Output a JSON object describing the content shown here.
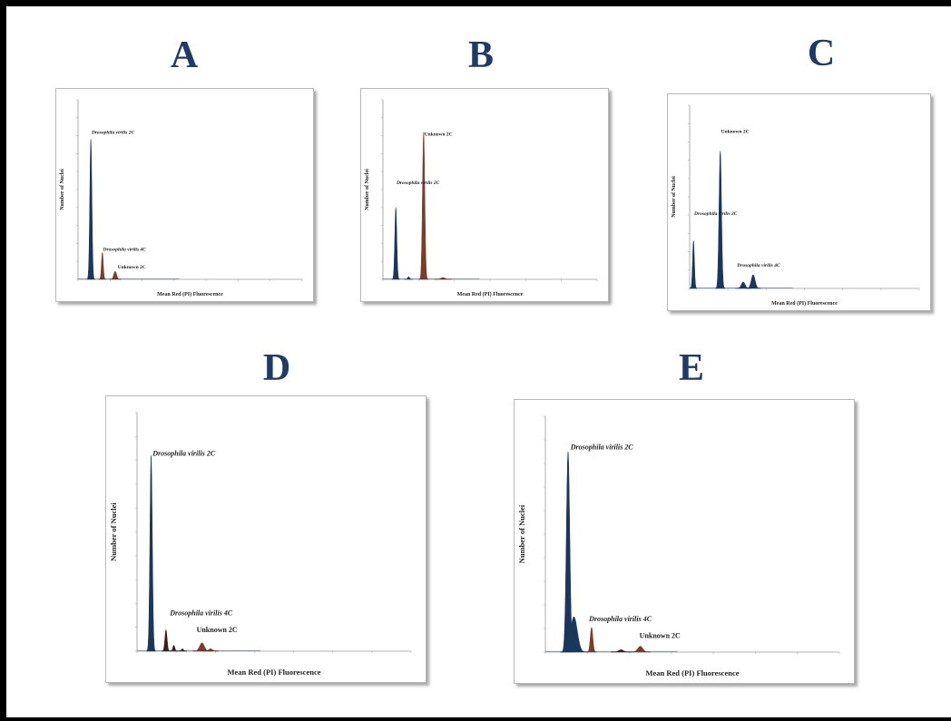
{
  "chart_data": [
    {
      "type": "area",
      "panel_label": "A",
      "xlabel": "Mean Red (PI) Fluorescence",
      "ylabel": "Number of Nuclei",
      "xlim": [
        0,
        350
      ],
      "ylim": [
        0,
        10
      ],
      "peaks": [
        {
          "x": 20,
          "height": 7.8,
          "width": 1.6,
          "color": "#1b365d"
        },
        {
          "x": 38,
          "height": 1.5,
          "width": 1.4,
          "color": "#7a3e28"
        },
        {
          "x": 58,
          "height": 0.45,
          "width": 2.2,
          "color": "#7a3e28"
        }
      ],
      "annotations": [
        {
          "text": "Drosophila virilis 2C",
          "x": 21,
          "y": 8.1,
          "italic": true
        },
        {
          "text": "Drosophila virilis 4C",
          "x": 39,
          "y": 1.6,
          "italic": true
        },
        {
          "text": "Unknown 2C",
          "x": 62,
          "y": 0.6,
          "italic": false
        }
      ],
      "colors": {
        "genome_standard": "#1b365d",
        "sample": "#7a3e28"
      }
    },
    {
      "type": "area",
      "panel_label": "B",
      "xlabel": "Mean Red (PI) Fluorescence",
      "ylabel": "Number of Nuclei",
      "xlim": [
        0,
        300
      ],
      "ylim": [
        0,
        10
      ],
      "peaks": [
        {
          "x": 18,
          "height": 4.0,
          "width": 1.4,
          "color": "#1b365d"
        },
        {
          "x": 36,
          "height": 0.15,
          "width": 1.4,
          "color": "#1b365d"
        },
        {
          "x": 57,
          "height": 8.2,
          "width": 1.6,
          "color": "#7a3e28"
        },
        {
          "x": 84,
          "height": 0.1,
          "width": 3.0,
          "color": "#7a3e28"
        }
      ],
      "annotations": [
        {
          "text": "Drosophila virilis 2C",
          "x": 19,
          "y": 5.3,
          "italic": true
        },
        {
          "text": "Unknown 2C",
          "x": 58,
          "y": 8.0,
          "italic": false
        }
      ],
      "colors": {
        "genome_standard": "#1b365d",
        "sample": "#7a3e28"
      }
    },
    {
      "type": "area",
      "panel_label": "C",
      "xlabel": "Mean Red (PI) Fluorescence",
      "ylabel": "Number of Nuclei",
      "xlim": [
        0,
        300
      ],
      "ylim": [
        0,
        10
      ],
      "peaks": [
        {
          "x": 5,
          "height": 2.6,
          "width": 1.2,
          "color": "#1b365d"
        },
        {
          "x": 40,
          "height": 7.5,
          "width": 1.6,
          "color": "#1b365d"
        },
        {
          "x": 70,
          "height": 0.35,
          "width": 2.5,
          "color": "#1b365d"
        },
        {
          "x": 83,
          "height": 0.75,
          "width": 2.5,
          "color": "#1b365d"
        }
      ],
      "annotations": [
        {
          "text": "Drosophila virilis 2C",
          "x": 6,
          "y": 4.0,
          "italic": true
        },
        {
          "text": "Unknown 2C",
          "x": 41,
          "y": 8.5,
          "italic": false
        },
        {
          "text": "Drosophila virilis 4C",
          "x": 62,
          "y": 1.2,
          "italic": true
        }
      ],
      "colors": {
        "genome_standard": "#1b365d",
        "sample": "#1b365d"
      }
    },
    {
      "type": "area",
      "panel_label": "D",
      "xlabel": "Mean Red (PI) Fluorescence",
      "ylabel": "Number of Nuclei",
      "xlim": [
        0,
        350
      ],
      "ylim": [
        0,
        10
      ],
      "peaks": [
        {
          "x": 18,
          "height": 8.2,
          "width": 1.5,
          "color": "#1b365d"
        },
        {
          "x": 37,
          "height": 0.9,
          "width": 1.4,
          "color": "#3a1f18"
        },
        {
          "x": 47,
          "height": 0.25,
          "width": 1.3,
          "color": "#3a1f18"
        },
        {
          "x": 58,
          "height": 0.1,
          "width": 1.4,
          "color": "#3a1f18"
        },
        {
          "x": 83,
          "height": 0.35,
          "width": 3.0,
          "color": "#7a3e28"
        },
        {
          "x": 94,
          "height": 0.1,
          "width": 2.5,
          "color": "#7a3e28"
        }
      ],
      "annotations": [
        {
          "text": "Drosophila virilis 2C",
          "x": 20,
          "y": 8.2,
          "italic": true
        },
        {
          "text": "Drosophila virilis 4C",
          "x": 42,
          "y": 1.5,
          "italic": true
        },
        {
          "text": "Unknown 2C",
          "x": 76,
          "y": 0.8,
          "italic": false
        }
      ],
      "colors": {
        "genome_standard": "#1b365d",
        "sample": "#7a3e28"
      }
    },
    {
      "type": "area",
      "panel_label": "E",
      "xlabel": "Mean Red (PI) Fluorescence",
      "ylabel": "Number of Nuclei",
      "xlim": [
        0,
        350
      ],
      "ylim": [
        0,
        10
      ],
      "peaks": [
        {
          "x": 27,
          "height": 8.5,
          "width": 2.0,
          "color": "#1b365d"
        },
        {
          "x": 34,
          "height": 1.5,
          "width": 4.0,
          "color": "#1b365d"
        },
        {
          "x": 55,
          "height": 1.05,
          "width": 1.5,
          "color": "#7a3e28"
        },
        {
          "x": 90,
          "height": 0.1,
          "width": 3.0,
          "color": "#3a1f18"
        },
        {
          "x": 113,
          "height": 0.25,
          "width": 3.0,
          "color": "#7a3e28"
        }
      ],
      "annotations": [
        {
          "text": "Drosophila virilis 2C",
          "x": 30,
          "y": 8.6,
          "italic": true
        },
        {
          "text": "Drosophila virilis 4C",
          "x": 52,
          "y": 1.3,
          "italic": true
        },
        {
          "text": "Unknown 2C",
          "x": 112,
          "y": 0.6,
          "italic": false
        }
      ],
      "colors": {
        "genome_standard": "#1b365d",
        "sample": "#7a3e28"
      }
    }
  ]
}
